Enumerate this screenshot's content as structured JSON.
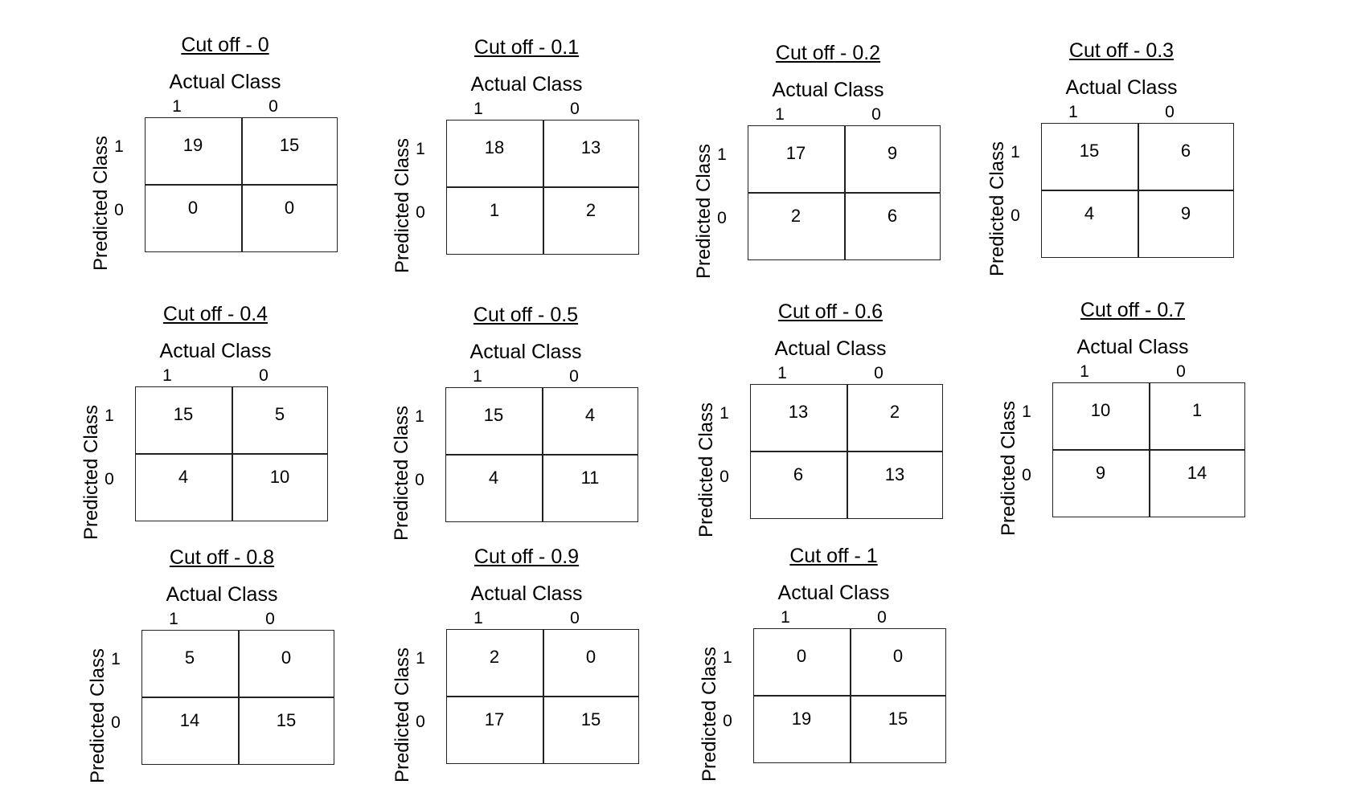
{
  "labels": {
    "actual": "Actual Class",
    "predicted": "Predicted Class",
    "one": "1",
    "zero": "0"
  },
  "matrices": [
    {
      "title": "Cut off - 0",
      "tp": "19",
      "fp": "15",
      "fn": "0",
      "tn": "0"
    },
    {
      "title": "Cut off - 0.1",
      "tp": "18",
      "fp": "13",
      "fn": "1",
      "tn": "2"
    },
    {
      "title": "Cut off - 0.2",
      "tp": "17",
      "fp": "9",
      "fn": "2",
      "tn": "6"
    },
    {
      "title": "Cut off - 0.3",
      "tp": "15",
      "fp": "6",
      "fn": "4",
      "tn": "9"
    },
    {
      "title": "Cut off - 0.4",
      "tp": "15",
      "fp": "5",
      "fn": "4",
      "tn": "10"
    },
    {
      "title": "Cut off - 0.5",
      "tp": "15",
      "fp": "4",
      "fn": "4",
      "tn": "11"
    },
    {
      "title": "Cut off - 0.6",
      "tp": "13",
      "fp": "2",
      "fn": "6",
      "tn": "13"
    },
    {
      "title": "Cut off - 0.7",
      "tp": "10",
      "fp": "1",
      "fn": "9",
      "tn": "14"
    },
    {
      "title": "Cut off - 0.8",
      "tp": "5",
      "fp": "0",
      "fn": "14",
      "tn": "15"
    },
    {
      "title": "Cut off - 0.9",
      "tp": "2",
      "fp": "0",
      "fn": "17",
      "tn": "15"
    },
    {
      "title": "Cut off - 1",
      "tp": "0",
      "fp": "0",
      "fn": "19",
      "tn": "15"
    }
  ]
}
